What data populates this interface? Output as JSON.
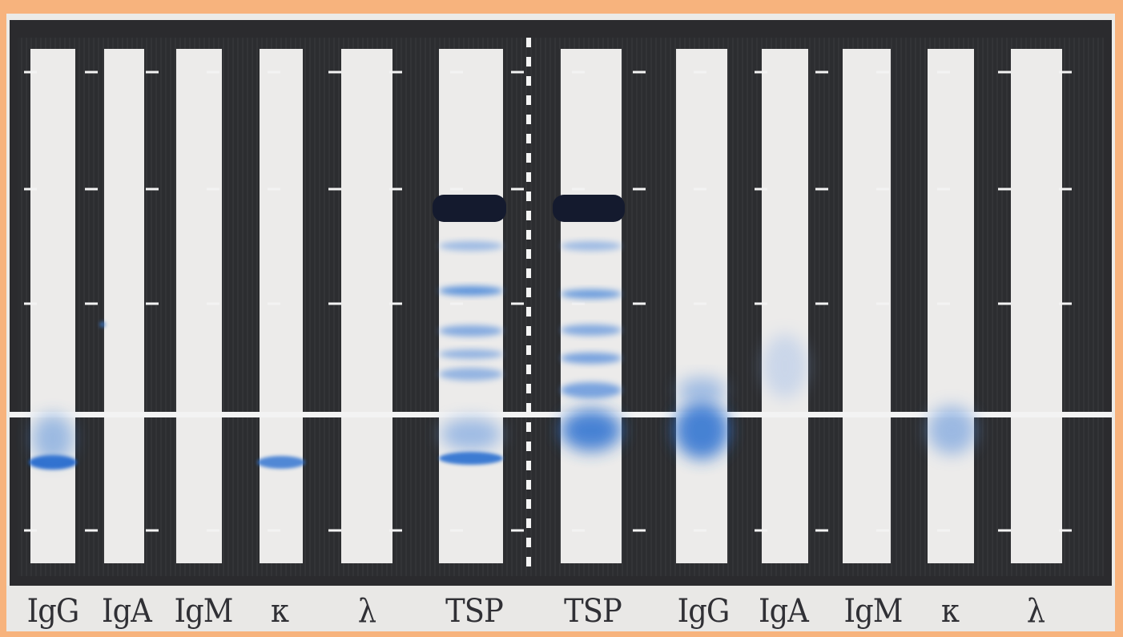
{
  "lane_labels": [
    "IgG",
    "IgA",
    "IgM",
    "κ",
    "λ",
    "TSP",
    "TSP",
    "IgG",
    "IgA",
    "IgM",
    "κ",
    "λ"
  ],
  "colors": {
    "background_border": "#f7b37d",
    "frame": "#2c2c2f",
    "strip": "#eceaea",
    "band_blue": "#2a6fd0",
    "band_dark": "#141a2e"
  }
}
